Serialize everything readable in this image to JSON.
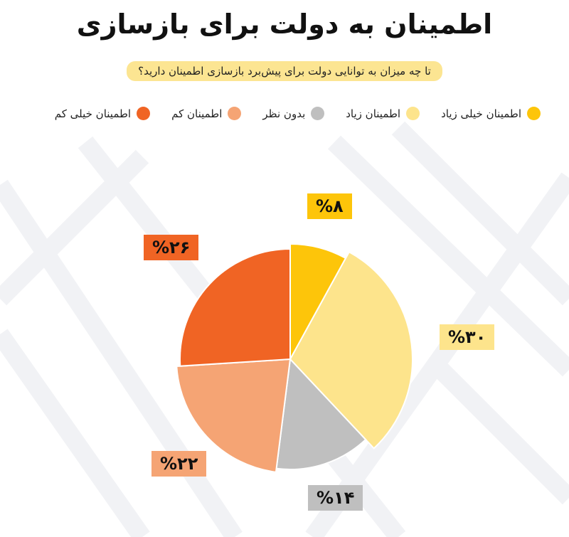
{
  "chart_data": {
    "type": "pie",
    "title": "اطمینان به دولت برای بازسازی",
    "subtitle": "تا چه میزان به توانایی دولت برای پیش‌برد بازسازی اطمینان دارید؟",
    "slices": [
      {
        "label": "اطمینان خیلی زیاد",
        "value": 8,
        "display": "%۸",
        "color": "#fdc50a",
        "label_bg": "#fdc50a",
        "label_color": "#111111"
      },
      {
        "label": "اطمینان زیاد",
        "value": 30,
        "display": "%۳۰",
        "color": "#fde48c",
        "label_bg": "#fde48c",
        "label_color": "#111111"
      },
      {
        "label": "بدون نظر",
        "value": 14,
        "display": "%۱۴",
        "color": "#bfbfbf",
        "label_bg": "#bfbfbf",
        "label_color": "#111111"
      },
      {
        "label": "اطمینان کم",
        "value": 22,
        "display": "%۲۲",
        "color": "#f5a474",
        "label_bg": "#f5a474",
        "label_color": "#111111"
      },
      {
        "label": "اطمینان خیلی کم",
        "value": 26,
        "display": "%۲۶",
        "color": "#f06424",
        "label_bg": "#f06424",
        "label_color": "#111111"
      }
    ],
    "legend": {
      "placement": "top",
      "order": [
        "اطمینان خیلی کم",
        "اطمینان کم",
        "بدون نظر",
        "اطمینان زیاد",
        "اطمینان خیلی زیاد"
      ]
    }
  }
}
